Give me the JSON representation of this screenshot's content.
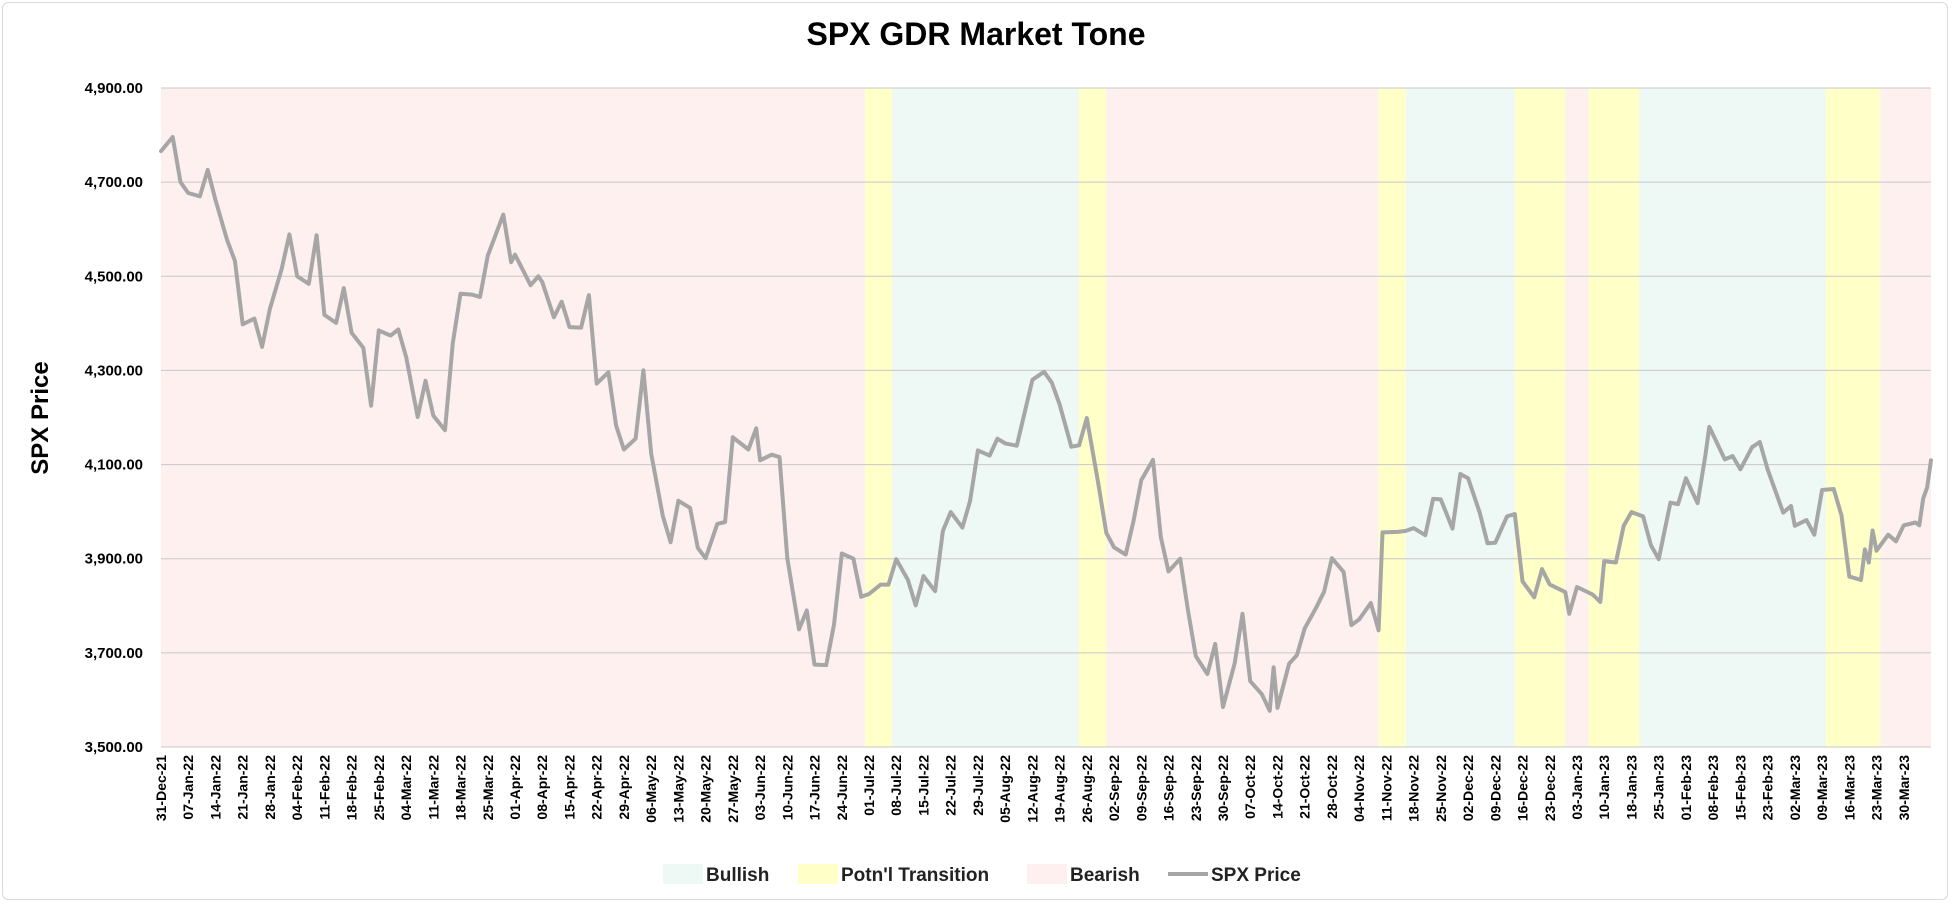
{
  "chart_data": {
    "type": "line",
    "title": "SPX GDR Market Tone",
    "ylabel": "SPX Price",
    "xlabel": "",
    "ylim": [
      3500,
      4900
    ],
    "yticks": [
      3500,
      3700,
      3900,
      4100,
      4300,
      4500,
      4700,
      4900
    ],
    "ytick_labels": [
      "3,500.00",
      "3,700.00",
      "3,900.00",
      "4,100.00",
      "4,300.00",
      "4,500.00",
      "4,700.00",
      "4,900.00"
    ],
    "grid": "horizontal",
    "legend_position": "bottom",
    "x_start": "2021-12-31",
    "x_end": "2023-03-31",
    "x_ticks": [
      "31-Dec-21",
      "07-Jan-22",
      "14-Jan-22",
      "21-Jan-22",
      "28-Jan-22",
      "04-Feb-22",
      "11-Feb-22",
      "18-Feb-22",
      "25-Feb-22",
      "04-Mar-22",
      "11-Mar-22",
      "18-Mar-22",
      "25-Mar-22",
      "01-Apr-22",
      "08-Apr-22",
      "15-Apr-22",
      "22-Apr-22",
      "29-Apr-22",
      "06-May-22",
      "13-May-22",
      "20-May-22",
      "27-May-22",
      "03-Jun-22",
      "10-Jun-22",
      "17-Jun-22",
      "24-Jun-22",
      "01-Jul-22",
      "08-Jul-22",
      "15-Jul-22",
      "22-Jul-22",
      "29-Jul-22",
      "05-Aug-22",
      "12-Aug-22",
      "19-Aug-22",
      "26-Aug-22",
      "02-Sep-22",
      "09-Sep-22",
      "16-Sep-22",
      "23-Sep-22",
      "30-Sep-22",
      "07-Oct-22",
      "14-Oct-22",
      "21-Oct-22",
      "28-Oct-22",
      "04-Nov-22",
      "11-Nov-22",
      "18-Nov-22",
      "25-Nov-22",
      "02-Dec-22",
      "09-Dec-22",
      "16-Dec-22",
      "23-Dec-22",
      "03-Jan-23",
      "10-Jan-23",
      "18-Jan-23",
      "25-Jan-23",
      "01-Feb-23",
      "08-Feb-23",
      "15-Feb-23",
      "23-Feb-23",
      "02-Mar-23",
      "09-Mar-23",
      "16-Mar-23",
      "23-Mar-23",
      "30-Mar-23"
    ],
    "regime_colors": {
      "Bullish": "#eef8f4",
      "Potn'l Transition": "#ffffc8",
      "Bearish": "#fdf0ef"
    },
    "line_color": "#a6a6a6",
    "regimes": [
      {
        "tone": "Bearish",
        "start": "2021-12-31",
        "end": "2022-06-30"
      },
      {
        "tone": "Potn'l Transition",
        "start": "2022-06-30",
        "end": "2022-07-07"
      },
      {
        "tone": "Bullish",
        "start": "2022-07-07",
        "end": "2022-08-24"
      },
      {
        "tone": "Potn'l Transition",
        "start": "2022-08-24",
        "end": "2022-08-31"
      },
      {
        "tone": "Bearish",
        "start": "2022-08-31",
        "end": "2022-11-09"
      },
      {
        "tone": "Potn'l Transition",
        "start": "2022-11-09",
        "end": "2022-11-16"
      },
      {
        "tone": "Bullish",
        "start": "2022-11-16",
        "end": "2022-12-14"
      },
      {
        "tone": "Potn'l Transition",
        "start": "2022-12-14",
        "end": "2022-12-27"
      },
      {
        "tone": "Bearish",
        "start": "2022-12-27",
        "end": "2023-01-02"
      },
      {
        "tone": "Potn'l Transition",
        "start": "2023-01-02",
        "end": "2023-01-15"
      },
      {
        "tone": "Bullish",
        "start": "2023-01-15",
        "end": "2023-03-04"
      },
      {
        "tone": "Potn'l Transition",
        "start": "2023-03-04",
        "end": "2023-03-18"
      },
      {
        "tone": "Bearish",
        "start": "2023-03-18",
        "end": "2023-03-31"
      }
    ],
    "series": [
      {
        "name": "SPX Price",
        "points": [
          [
            "2021-12-31",
            4766
          ],
          [
            "2022-01-03",
            4796
          ],
          [
            "2022-01-05",
            4700
          ],
          [
            "2022-01-07",
            4677
          ],
          [
            "2022-01-10",
            4670
          ],
          [
            "2022-01-12",
            4726
          ],
          [
            "2022-01-14",
            4662
          ],
          [
            "2022-01-17",
            4577
          ],
          [
            "2022-01-19",
            4533
          ],
          [
            "2022-01-21",
            4398
          ],
          [
            "2022-01-24",
            4410
          ],
          [
            "2022-01-26",
            4350
          ],
          [
            "2022-01-28",
            4431
          ],
          [
            "2022-01-31",
            4515
          ],
          [
            "2022-02-02",
            4589
          ],
          [
            "2022-02-04",
            4500
          ],
          [
            "2022-02-07",
            4484
          ],
          [
            "2022-02-09",
            4587
          ],
          [
            "2022-02-11",
            4418
          ],
          [
            "2022-02-14",
            4401
          ],
          [
            "2022-02-16",
            4475
          ],
          [
            "2022-02-18",
            4380
          ],
          [
            "2022-02-21",
            4348
          ],
          [
            "2022-02-23",
            4225
          ],
          [
            "2022-02-25",
            4385
          ],
          [
            "2022-02-28",
            4374
          ],
          [
            "2022-03-02",
            4387
          ],
          [
            "2022-03-04",
            4329
          ],
          [
            "2022-03-07",
            4201
          ],
          [
            "2022-03-09",
            4278
          ],
          [
            "2022-03-11",
            4204
          ],
          [
            "2022-03-14",
            4173
          ],
          [
            "2022-03-16",
            4358
          ],
          [
            "2022-03-18",
            4463
          ],
          [
            "2022-03-21",
            4461
          ],
          [
            "2022-03-23",
            4456
          ],
          [
            "2022-03-25",
            4544
          ],
          [
            "2022-03-29",
            4631
          ],
          [
            "2022-03-31",
            4530
          ],
          [
            "2022-04-01",
            4546
          ],
          [
            "2022-04-05",
            4481
          ],
          [
            "2022-04-07",
            4500
          ],
          [
            "2022-04-08",
            4488
          ],
          [
            "2022-04-11",
            4413
          ],
          [
            "2022-04-13",
            4446
          ],
          [
            "2022-04-15",
            4392
          ],
          [
            "2022-04-18",
            4391
          ],
          [
            "2022-04-20",
            4460
          ],
          [
            "2022-04-22",
            4272
          ],
          [
            "2022-04-25",
            4296
          ],
          [
            "2022-04-27",
            4183
          ],
          [
            "2022-04-29",
            4132
          ],
          [
            "2022-05-02",
            4155
          ],
          [
            "2022-05-04",
            4300
          ],
          [
            "2022-05-06",
            4123
          ],
          [
            "2022-05-09",
            3991
          ],
          [
            "2022-05-11",
            3935
          ],
          [
            "2022-05-13",
            4023
          ],
          [
            "2022-05-16",
            4008
          ],
          [
            "2022-05-18",
            3923
          ],
          [
            "2022-05-20",
            3901
          ],
          [
            "2022-05-23",
            3974
          ],
          [
            "2022-05-25",
            3978
          ],
          [
            "2022-05-27",
            4158
          ],
          [
            "2022-05-31",
            4132
          ],
          [
            "2022-06-02",
            4177
          ],
          [
            "2022-06-03",
            4109
          ],
          [
            "2022-06-06",
            4121
          ],
          [
            "2022-06-08",
            4116
          ],
          [
            "2022-06-10",
            3901
          ],
          [
            "2022-06-13",
            3750
          ],
          [
            "2022-06-15",
            3790
          ],
          [
            "2022-06-17",
            3675
          ],
          [
            "2022-06-20",
            3674
          ],
          [
            "2022-06-22",
            3760
          ],
          [
            "2022-06-24",
            3911
          ],
          [
            "2022-06-27",
            3900
          ],
          [
            "2022-06-29",
            3819
          ],
          [
            "2022-07-01",
            3825
          ],
          [
            "2022-07-04",
            3845
          ],
          [
            "2022-07-06",
            3845
          ],
          [
            "2022-07-08",
            3899
          ],
          [
            "2022-07-11",
            3855
          ],
          [
            "2022-07-13",
            3801
          ],
          [
            "2022-07-15",
            3863
          ],
          [
            "2022-07-18",
            3831
          ],
          [
            "2022-07-20",
            3959
          ],
          [
            "2022-07-22",
            3999
          ],
          [
            "2022-07-25",
            3966
          ],
          [
            "2022-07-27",
            4023
          ],
          [
            "2022-07-29",
            4130
          ],
          [
            "2022-08-01",
            4119
          ],
          [
            "2022-08-03",
            4155
          ],
          [
            "2022-08-05",
            4145
          ],
          [
            "2022-08-08",
            4140
          ],
          [
            "2022-08-10",
            4210
          ],
          [
            "2022-08-12",
            4280
          ],
          [
            "2022-08-15",
            4297
          ],
          [
            "2022-08-17",
            4274
          ],
          [
            "2022-08-19",
            4228
          ],
          [
            "2022-08-22",
            4138
          ],
          [
            "2022-08-24",
            4141
          ],
          [
            "2022-08-26",
            4199
          ],
          [
            "2022-08-29",
            4057
          ],
          [
            "2022-08-31",
            3955
          ],
          [
            "2022-09-02",
            3924
          ],
          [
            "2022-09-05",
            3909
          ],
          [
            "2022-09-07",
            3980
          ],
          [
            "2022-09-09",
            4067
          ],
          [
            "2022-09-12",
            4110
          ],
          [
            "2022-09-14",
            3946
          ],
          [
            "2022-09-16",
            3873
          ],
          [
            "2022-09-19",
            3900
          ],
          [
            "2022-09-21",
            3790
          ],
          [
            "2022-09-23",
            3693
          ],
          [
            "2022-09-26",
            3655
          ],
          [
            "2022-09-28",
            3719
          ],
          [
            "2022-09-30",
            3585
          ],
          [
            "2022-10-03",
            3678
          ],
          [
            "2022-10-05",
            3783
          ],
          [
            "2022-10-07",
            3640
          ],
          [
            "2022-10-10",
            3612
          ],
          [
            "2022-10-12",
            3577
          ],
          [
            "2022-10-13",
            3669
          ],
          [
            "2022-10-14",
            3583
          ],
          [
            "2022-10-17",
            3677
          ],
          [
            "2022-10-19",
            3695
          ],
          [
            "2022-10-21",
            3752
          ],
          [
            "2022-10-24",
            3797
          ],
          [
            "2022-10-26",
            3830
          ],
          [
            "2022-10-28",
            3901
          ],
          [
            "2022-10-31",
            3872
          ],
          [
            "2022-11-02",
            3759
          ],
          [
            "2022-11-04",
            3771
          ],
          [
            "2022-11-07",
            3806
          ],
          [
            "2022-11-09",
            3748
          ],
          [
            "2022-11-10",
            3956
          ],
          [
            "2022-11-14",
            3957
          ],
          [
            "2022-11-16",
            3959
          ],
          [
            "2022-11-18",
            3965
          ],
          [
            "2022-11-21",
            3950
          ],
          [
            "2022-11-23",
            4027
          ],
          [
            "2022-11-25",
            4026
          ],
          [
            "2022-11-28",
            3964
          ],
          [
            "2022-11-30",
            4080
          ],
          [
            "2022-12-02",
            4071
          ],
          [
            "2022-12-05",
            3998
          ],
          [
            "2022-12-07",
            3933
          ],
          [
            "2022-12-09",
            3934
          ],
          [
            "2022-12-12",
            3990
          ],
          [
            "2022-12-14",
            3995
          ],
          [
            "2022-12-16",
            3852
          ],
          [
            "2022-12-19",
            3818
          ],
          [
            "2022-12-21",
            3878
          ],
          [
            "2022-12-23",
            3845
          ],
          [
            "2022-12-27",
            3829
          ],
          [
            "2022-12-28",
            3783
          ],
          [
            "2022-12-30",
            3840
          ],
          [
            "2023-01-03",
            3824
          ],
          [
            "2023-01-05",
            3808
          ],
          [
            "2023-01-06",
            3895
          ],
          [
            "2023-01-09",
            3892
          ],
          [
            "2023-01-11",
            3970
          ],
          [
            "2023-01-13",
            3999
          ],
          [
            "2023-01-16",
            3990
          ],
          [
            "2023-01-18",
            3929
          ],
          [
            "2023-01-20",
            3899
          ],
          [
            "2023-01-23",
            4019
          ],
          [
            "2023-01-25",
            4016
          ],
          [
            "2023-01-27",
            4071
          ],
          [
            "2023-01-30",
            4018
          ],
          [
            "2023-02-01",
            4120
          ],
          [
            "2023-02-02",
            4180
          ],
          [
            "2023-02-06",
            4111
          ],
          [
            "2023-02-08",
            4118
          ],
          [
            "2023-02-10",
            4090
          ],
          [
            "2023-02-13",
            4137
          ],
          [
            "2023-02-15",
            4148
          ],
          [
            "2023-02-17",
            4090
          ],
          [
            "2023-02-21",
            3998
          ],
          [
            "2023-02-23",
            4012
          ],
          [
            "2023-02-24",
            3970
          ],
          [
            "2023-02-27",
            3982
          ],
          [
            "2023-03-01",
            3951
          ],
          [
            "2023-03-03",
            4046
          ],
          [
            "2023-03-06",
            4048
          ],
          [
            "2023-03-08",
            3992
          ],
          [
            "2023-03-10",
            3862
          ],
          [
            "2023-03-13",
            3855
          ],
          [
            "2023-03-14",
            3920
          ],
          [
            "2023-03-15",
            3892
          ],
          [
            "2023-03-16",
            3960
          ],
          [
            "2023-03-17",
            3917
          ],
          [
            "2023-03-20",
            3951
          ],
          [
            "2023-03-22",
            3937
          ],
          [
            "2023-03-24",
            3971
          ],
          [
            "2023-03-27",
            3977
          ],
          [
            "2023-03-28",
            3971
          ],
          [
            "2023-03-29",
            4028
          ],
          [
            "2023-03-30",
            4051
          ],
          [
            "2023-03-31",
            4109
          ]
        ]
      }
    ],
    "legend": [
      "Bullish",
      "Potn'l Transition",
      "Bearish",
      "SPX Price"
    ]
  }
}
